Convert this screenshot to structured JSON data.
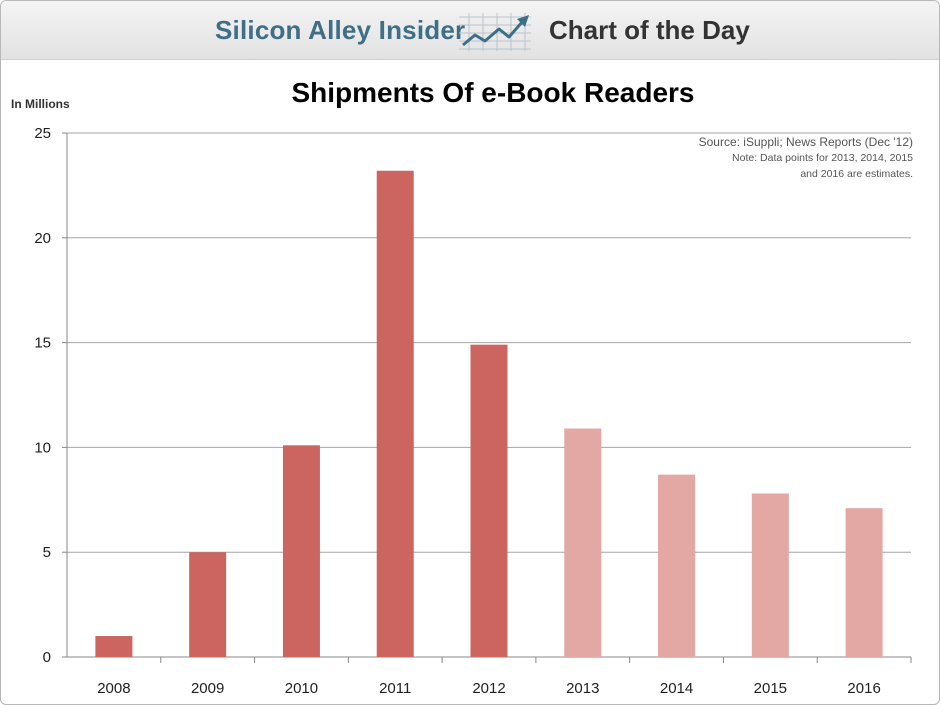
{
  "header": {
    "brand": "Silicon Alley Insider",
    "logo_icon": "rising-chart-arrow-icon",
    "section": "Chart of the Day"
  },
  "colors": {
    "actual": "#cc6560",
    "estimate": "#e3a7a4",
    "grid": "#a6a6a6",
    "brand_text": "#3e6f86"
  },
  "chart_data": {
    "type": "bar",
    "title": "Shipments Of e-Book Readers",
    "ylabel": "In Millions",
    "xlabel": "",
    "categories": [
      "2008",
      "2009",
      "2010",
      "2011",
      "2012",
      "2013",
      "2014",
      "2015",
      "2016"
    ],
    "values": [
      1.0,
      5.0,
      10.1,
      23.2,
      14.9,
      10.9,
      8.7,
      7.8,
      7.1
    ],
    "estimated": [
      false,
      false,
      false,
      false,
      false,
      true,
      true,
      true,
      true
    ],
    "ylim": [
      0,
      25
    ],
    "yticks": [
      0,
      5,
      10,
      15,
      20,
      25
    ],
    "grid": true,
    "source": "Source: iSuppli; News Reports (Dec '12)",
    "note_lines": [
      "Note: Data points for 2013, 2014, 2015",
      "and 2016 are estimates."
    ]
  }
}
